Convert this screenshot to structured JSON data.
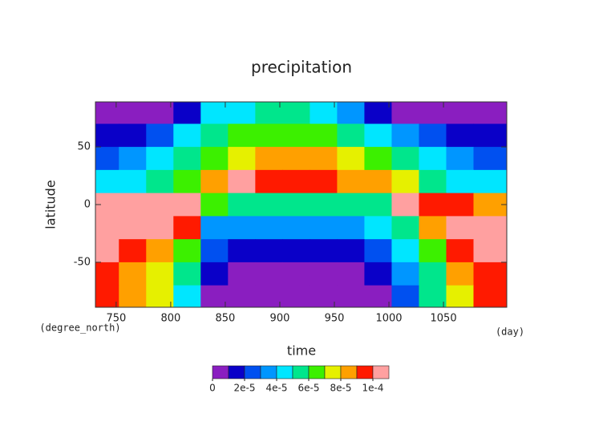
{
  "chart_data": {
    "type": "heatmap",
    "title": "precipitation",
    "xlabel": "time",
    "ylabel": "latitude",
    "xunit": "(day)",
    "yunit": "(degree_north)",
    "x": [
      740,
      765,
      790,
      815,
      840,
      865,
      890,
      915,
      940,
      965,
      990,
      1015,
      1040,
      1065,
      1090
    ],
    "y": [
      80,
      60,
      40,
      20,
      0,
      -20,
      -40,
      -60,
      -80
    ],
    "z": [
      [
        0,
        0,
        0,
        1e-05,
        4e-05,
        4e-05,
        5e-05,
        5e-05,
        4e-05,
        3e-05,
        1e-05,
        0,
        0,
        0,
        0
      ],
      [
        1e-05,
        1e-05,
        2e-05,
        4e-05,
        5e-05,
        6e-05,
        6e-05,
        6e-05,
        6e-05,
        5e-05,
        4e-05,
        3e-05,
        2e-05,
        1e-05,
        1e-05
      ],
      [
        2e-05,
        3e-05,
        4e-05,
        5e-05,
        6e-05,
        7e-05,
        8e-05,
        8e-05,
        8e-05,
        7e-05,
        6e-05,
        5e-05,
        4e-05,
        3e-05,
        2e-05
      ],
      [
        4e-05,
        4e-05,
        5e-05,
        6e-05,
        8e-05,
        0.0001,
        9e-05,
        9e-05,
        9e-05,
        8e-05,
        8e-05,
        7e-05,
        5e-05,
        4e-05,
        4e-05
      ],
      [
        0.00011,
        0.00011,
        0.00011,
        0.0001,
        6e-05,
        5e-05,
        5e-05,
        5e-05,
        5e-05,
        5e-05,
        5e-05,
        0.00011,
        9e-05,
        9e-05,
        8e-05
      ],
      [
        0.00011,
        0.00011,
        0.0001,
        9e-05,
        3e-05,
        3e-05,
        3e-05,
        3e-05,
        3e-05,
        3e-05,
        4e-05,
        5e-05,
        8e-05,
        0.00011,
        0.00011
      ],
      [
        0.0001,
        9e-05,
        8e-05,
        6e-05,
        2e-05,
        1e-05,
        1e-05,
        1e-05,
        1e-05,
        1e-05,
        2e-05,
        4e-05,
        6e-05,
        9e-05,
        0.0001
      ],
      [
        9e-05,
        8e-05,
        7e-05,
        5e-05,
        1e-05,
        0,
        0,
        0,
        0,
        0,
        1e-05,
        3e-05,
        5e-05,
        8e-05,
        9e-05
      ],
      [
        9e-05,
        8e-05,
        7e-05,
        4e-05,
        0,
        0,
        0,
        0,
        0,
        0,
        0,
        2e-05,
        5e-05,
        7e-05,
        9e-05
      ]
    ],
    "xlim": [
      731,
      1108
    ],
    "ylim": [
      -89,
      89
    ],
    "xticks": [
      750,
      800,
      850,
      900,
      950,
      1000,
      1050
    ],
    "yticks": [
      -50,
      0,
      50
    ],
    "levels": [
      0,
      1e-05,
      2e-05,
      3e-05,
      4e-05,
      5e-05,
      6e-05,
      7e-05,
      8e-05,
      9e-05,
      0.0001
    ],
    "colors": [
      "#8a1ec0",
      "#0a00c8",
      "#0050f0",
      "#0096ff",
      "#00e6ff",
      "#00e68c",
      "#3cf000",
      "#e6f000",
      "#ffa000",
      "#ff1a00",
      "#ffa0a0"
    ],
    "colorbar_ticks": [
      {
        "value": 0,
        "label": "0"
      },
      {
        "value": 2e-05,
        "label": "2e-5"
      },
      {
        "value": 4e-05,
        "label": "4e-5"
      },
      {
        "value": 6e-05,
        "label": "6e-5"
      },
      {
        "value": 8e-05,
        "label": "8e-5"
      },
      {
        "value": 0.0001,
        "label": "1e-4"
      }
    ]
  }
}
